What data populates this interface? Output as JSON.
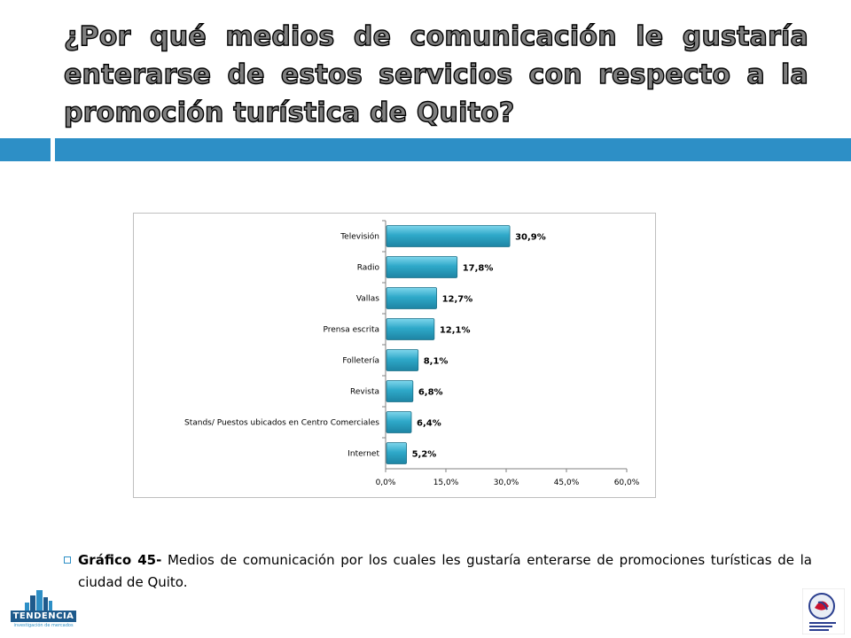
{
  "slide": {
    "title": "¿Por qué medios de comunicación le gustaría enterarse de estos servicios con respecto a la promoción turística de Quito?"
  },
  "caption": {
    "label": "Gráfico 45-",
    "text": " Medios de comunicación por los cuales les gustaría enterarse de promociones turísticas de  la ciudad de Quito."
  },
  "logos": {
    "left_name": "TENDENCIA",
    "left_subtitle": "investigación de mercados",
    "right_name": "Empresa Metropolitana Quito Turismo"
  },
  "colors": {
    "accent_band": "#2d8fc6",
    "bar_fill": "#2fa9c9",
    "bar_stroke": "#1b6f87"
  },
  "chart_data": {
    "type": "bar",
    "orientation": "horizontal",
    "categories": [
      "Televisión",
      "Radio",
      "Vallas",
      "Prensa escrita",
      "Folletería",
      "Revista",
      "Stands/ Puestos ubicados en Centro Comerciales",
      "Internet"
    ],
    "values": [
      30.9,
      17.8,
      12.7,
      12.1,
      8.1,
      6.8,
      6.4,
      5.2
    ],
    "data_labels": [
      "30,9%",
      "17,8%",
      "12,7%",
      "12,1%",
      "8,1%",
      "6,8%",
      "6,4%",
      "5,2%"
    ],
    "xlim": [
      0,
      60
    ],
    "xticks": [
      0,
      15,
      30,
      45,
      60
    ],
    "xtick_labels": [
      "0,0%",
      "15,0%",
      "30,0%",
      "45,0%",
      "60,0%"
    ],
    "grid": false,
    "legend": "none"
  }
}
